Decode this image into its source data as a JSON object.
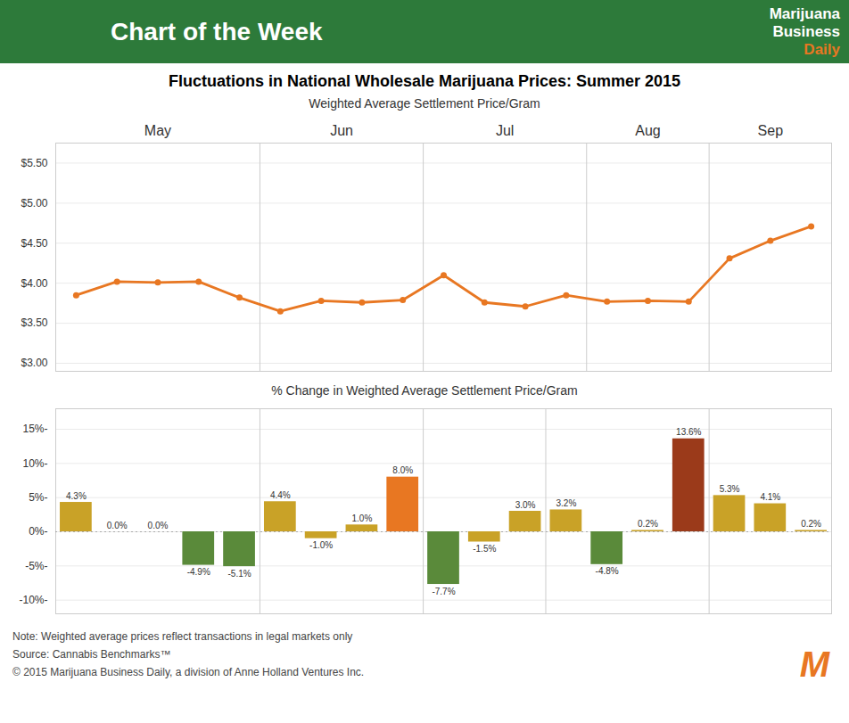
{
  "chart_data": [
    {
      "type": "line",
      "title": "Fluctuations in National Wholesale Marijuana Prices: Summer 2015",
      "subtitle": "Weighted Average Settlement Price/Gram",
      "annotations": [
        "Chart of the Week",
        "Marijuana",
        "Business",
        "Daily"
      ],
      "x": [
        0,
        1,
        2,
        3,
        4,
        5,
        6,
        7,
        8,
        9,
        10,
        11,
        12,
        13,
        14,
        15,
        16,
        17,
        18
      ],
      "values": [
        3.85,
        4.02,
        4.01,
        4.02,
        3.82,
        3.65,
        3.78,
        3.76,
        3.79,
        4.1,
        3.76,
        3.71,
        3.85,
        3.77,
        3.78,
        3.77,
        4.31,
        4.53,
        4.71
      ],
      "color": "#e87722",
      "marker": "circle",
      "xlim": [
        -0.5,
        18.5
      ],
      "xticks": [
        {
          "value": 2.0,
          "label": "May"
        },
        {
          "value": 6.5,
          "label": "Jun"
        },
        {
          "value": 10.5,
          "label": "Jul"
        },
        {
          "value": 14.0,
          "label": "Aug"
        },
        {
          "value": 17.0,
          "label": "Sep"
        }
      ],
      "ylim": [
        2.9,
        5.75
      ],
      "yticks": [
        {
          "value": 3.0,
          "label": "$3.00"
        },
        {
          "value": 3.5,
          "label": "$3.50"
        },
        {
          "value": 4.0,
          "label": "$4.00"
        },
        {
          "value": 4.5,
          "label": "$4.50"
        },
        {
          "value": 5.0,
          "label": "$5.00"
        },
        {
          "value": 5.5,
          "label": "$5.50"
        }
      ],
      "dividers": [
        4.5,
        8.5,
        12.5,
        15.5
      ],
      "grid": true
    },
    {
      "type": "bar",
      "subtitle": "% Change in Weighted Average Settlement Price/Gram",
      "categories": [
        null,
        null,
        null,
        null,
        null,
        null,
        null,
        null,
        null,
        null,
        null,
        null,
        null,
        null,
        null,
        null,
        null,
        null,
        null
      ],
      "values": [
        4.3,
        0.0,
        0.0,
        -4.9,
        -5.1,
        4.4,
        -1.0,
        1.0,
        8.0,
        -7.7,
        -1.5,
        3.0,
        3.2,
        -4.8,
        0.2,
        13.6,
        5.3,
        4.1,
        0.2
      ],
      "value_labels": [
        "4.3%",
        "0.0%",
        "0.0%",
        "-4.9%",
        "-5.1%",
        "4.4%",
        "-1.0%",
        "1.0%",
        "8.0%",
        "-7.7%",
        "-1.5%",
        "3.0%",
        "3.2%",
        "-4.8%",
        "0.2%",
        "13.6%",
        "5.3%",
        "4.1%",
        "0.2%"
      ],
      "colors": [
        "#c9a227",
        "#c9a227",
        "#c9a227",
        "#5a8a3a",
        "#5a8a3a",
        "#c9a227",
        "#c9a227",
        "#c9a227",
        "#e87722",
        "#5a8a3a",
        "#c9a227",
        "#c9a227",
        "#c9a227",
        "#5a8a3a",
        "#c9a227",
        "#9b3a1a",
        "#c9a227",
        "#c9a227",
        "#c9a227"
      ],
      "ylim": [
        -12,
        18
      ],
      "yticks": [
        {
          "value": -10,
          "label": "-10%-"
        },
        {
          "value": -5,
          "label": "-5%-"
        },
        {
          "value": 0,
          "label": "0%-"
        },
        {
          "value": 5,
          "label": "5%-"
        },
        {
          "value": 10,
          "label": "10%-"
        },
        {
          "value": 15,
          "label": "15%-"
        }
      ],
      "dividers": [
        4.5,
        8.5,
        11.5,
        15.5
      ],
      "grid": true,
      "data_labels": true,
      "tick_labels": "y",
      "annotations": [
        "Note: Weighted average prices reflect transactions in legal markets only",
        "Source: Cannabis Benchmarks™",
        "© 2015 Marijuana Business Daily, a division of Anne Holland Ventures Inc.",
        "M"
      ]
    }
  ]
}
